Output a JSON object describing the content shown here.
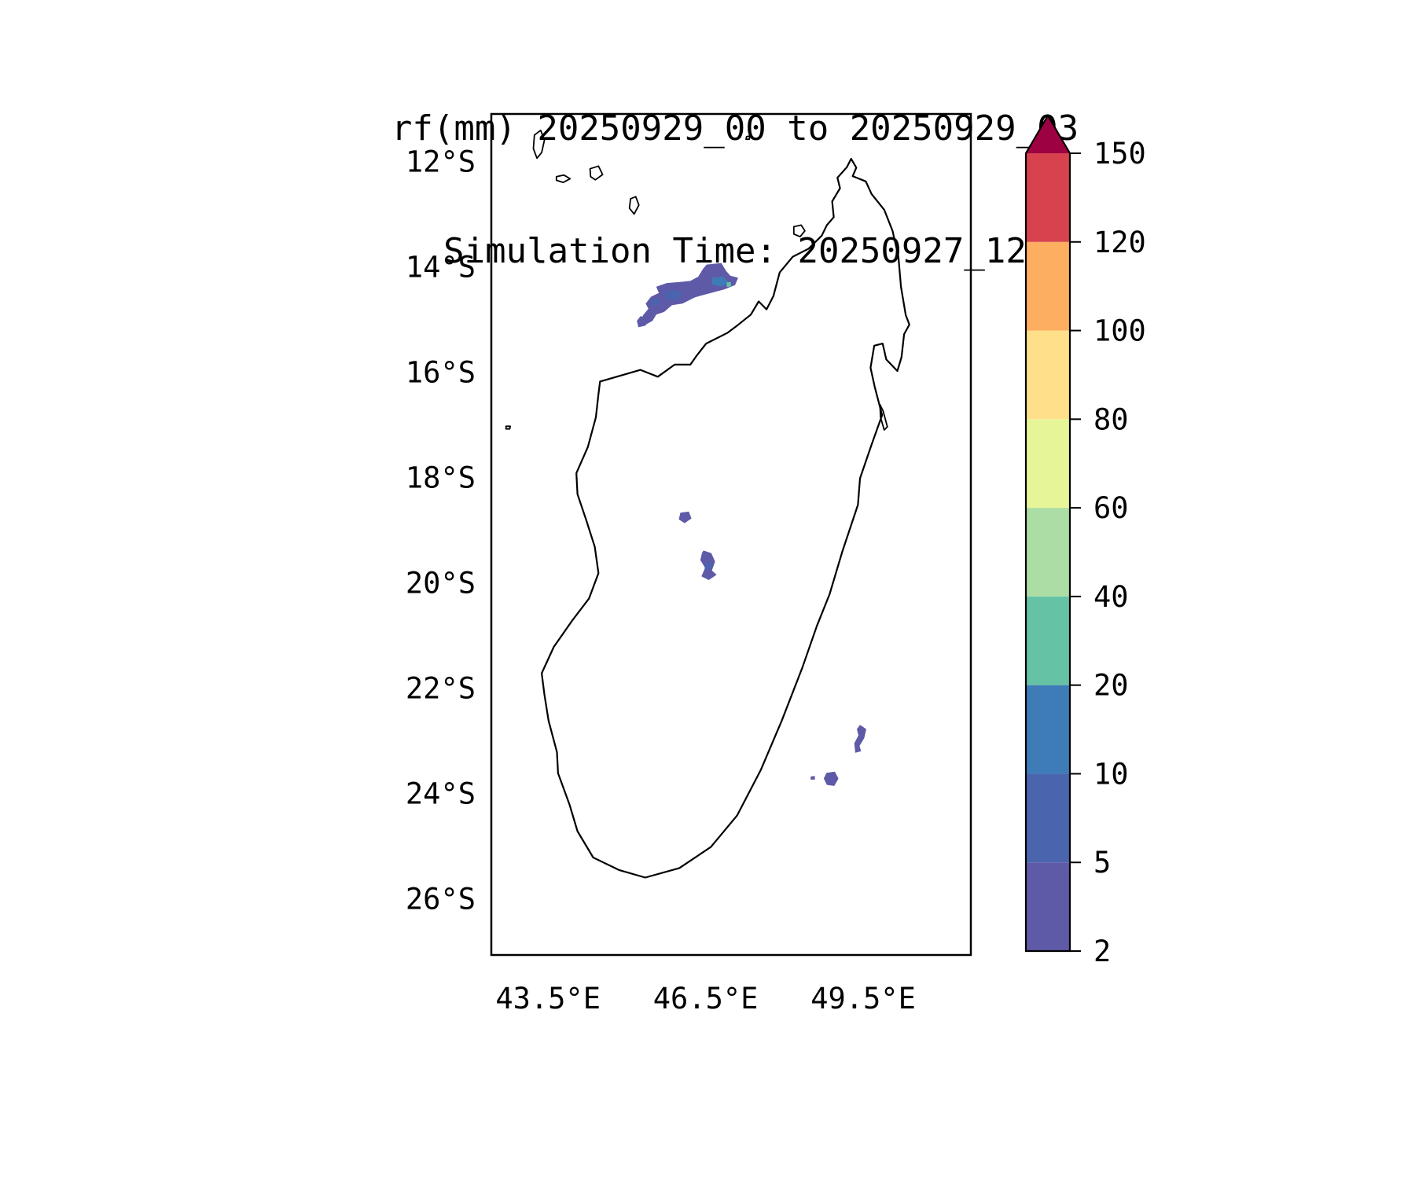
{
  "figure": {
    "title_line1": "rf(mm) 20250929_00 to 20250929_03",
    "title_line2": "Simulation Time: 20250927_12"
  },
  "chart_data": {
    "type": "heatmap",
    "title": "rf(mm) 20250929_00 to 20250929_03",
    "subtitle": "Simulation Time: 20250927_12",
    "variable": "rainfall accumulation",
    "unit": "mm",
    "region": "Madagascar",
    "grid": false,
    "x_axis": {
      "label_suffix": "°E",
      "ticks": [
        43.5,
        46.5,
        49.5
      ],
      "range": [
        42.42,
        51.55
      ]
    },
    "y_axis": {
      "label_suffix": "°S",
      "ticks": [
        12,
        14,
        16,
        18,
        20,
        22,
        24,
        26
      ],
      "range": [
        11.1,
        27.07
      ]
    },
    "colorbar": {
      "boundaries": [
        2,
        5,
        10,
        20,
        40,
        60,
        80,
        100,
        120,
        150
      ],
      "colors": [
        "#5e5aa8",
        "#4b64ae",
        "#3e7cb8",
        "#66c2a5",
        "#abdda4",
        "#e6f598",
        "#fee08b",
        "#fdae61",
        "#d7424e"
      ],
      "over_color": "#9e0142",
      "extend": "max",
      "position": "right"
    },
    "rain_patches": [
      {
        "id": "nw-main",
        "value_mm": "2-5",
        "color_index": 0,
        "polygon": [
          [
            46.52,
            13.96
          ],
          [
            46.8,
            13.93
          ],
          [
            46.89,
            14.08
          ],
          [
            46.97,
            14.17
          ],
          [
            47.12,
            14.21
          ],
          [
            47.06,
            14.35
          ],
          [
            46.86,
            14.43
          ],
          [
            46.6,
            14.5
          ],
          [
            46.3,
            14.58
          ],
          [
            46.06,
            14.7
          ],
          [
            45.86,
            14.73
          ],
          [
            45.71,
            14.86
          ],
          [
            45.56,
            14.91
          ],
          [
            45.49,
            15.03
          ],
          [
            45.36,
            15.1
          ],
          [
            45.26,
            15.05
          ],
          [
            45.31,
            14.92
          ],
          [
            45.41,
            14.8
          ],
          [
            45.36,
            14.7
          ],
          [
            45.46,
            14.57
          ],
          [
            45.61,
            14.5
          ],
          [
            45.56,
            14.38
          ],
          [
            45.76,
            14.31
          ],
          [
            46.01,
            14.29
          ],
          [
            46.21,
            14.27
          ],
          [
            46.36,
            14.19
          ],
          [
            46.45,
            14.04
          ]
        ]
      },
      {
        "id": "nw-sw-blob",
        "value_mm": "2-5",
        "color_index": 0,
        "polygon": [
          [
            45.26,
            14.94
          ],
          [
            45.38,
            14.97
          ],
          [
            45.36,
            15.12
          ],
          [
            45.22,
            15.15
          ],
          [
            45.19,
            15.03
          ]
        ]
      },
      {
        "id": "nw-core-blue",
        "value_mm": "10-20",
        "color_index": 2,
        "polygon": [
          [
            46.62,
            14.21
          ],
          [
            46.83,
            14.19
          ],
          [
            46.93,
            14.29
          ],
          [
            46.81,
            14.38
          ],
          [
            46.63,
            14.34
          ]
        ]
      },
      {
        "id": "nw-core-teal",
        "value_mm": "20-40",
        "color_index": 3,
        "polygon": [
          [
            46.9,
            14.3
          ],
          [
            46.98,
            14.29
          ],
          [
            46.98,
            14.38
          ],
          [
            46.9,
            14.38
          ]
        ]
      },
      {
        "id": "nw-inner-1",
        "value_mm": "5-10",
        "color_index": 1,
        "polygon": [
          [
            45.73,
            14.47
          ],
          [
            45.96,
            14.44
          ],
          [
            46.06,
            14.54
          ],
          [
            45.91,
            14.65
          ],
          [
            45.73,
            14.61
          ]
        ]
      },
      {
        "id": "nw-inner-2",
        "value_mm": "5-10",
        "color_index": 1,
        "polygon": [
          [
            45.46,
            14.62
          ],
          [
            45.61,
            14.6
          ],
          [
            45.64,
            14.72
          ],
          [
            45.48,
            14.74
          ]
        ]
      },
      {
        "id": "central-small",
        "value_mm": "2-5",
        "color_index": 0,
        "polygon": [
          [
            46.02,
            18.67
          ],
          [
            46.18,
            18.65
          ],
          [
            46.23,
            18.78
          ],
          [
            46.1,
            18.87
          ],
          [
            45.99,
            18.8
          ]
        ]
      },
      {
        "id": "central-blob",
        "value_mm": "2-5",
        "color_index": 0,
        "polygon": [
          [
            46.46,
            19.39
          ],
          [
            46.61,
            19.44
          ],
          [
            46.68,
            19.6
          ],
          [
            46.62,
            19.77
          ],
          [
            46.71,
            19.85
          ],
          [
            46.56,
            19.95
          ],
          [
            46.42,
            19.88
          ],
          [
            46.49,
            19.72
          ],
          [
            46.4,
            19.57
          ],
          [
            46.43,
            19.44
          ]
        ]
      },
      {
        "id": "central-blob-core",
        "value_mm": "5-10",
        "color_index": 1,
        "polygon": [
          [
            46.52,
            19.6
          ],
          [
            46.63,
            19.63
          ],
          [
            46.58,
            19.77
          ],
          [
            46.48,
            19.73
          ]
        ]
      },
      {
        "id": "se-coast",
        "value_mm": "2-5",
        "color_index": 0,
        "polygon": [
          [
            49.44,
            22.7
          ],
          [
            49.56,
            22.78
          ],
          [
            49.52,
            22.95
          ],
          [
            49.43,
            23.1
          ],
          [
            49.46,
            23.2
          ],
          [
            49.35,
            23.23
          ],
          [
            49.33,
            23.05
          ],
          [
            49.41,
            22.9
          ],
          [
            49.38,
            22.78
          ]
        ]
      },
      {
        "id": "se-inland",
        "value_mm": "2-5",
        "color_index": 0,
        "polygon": [
          [
            48.8,
            23.61
          ],
          [
            48.96,
            23.59
          ],
          [
            49.03,
            23.72
          ],
          [
            48.95,
            23.86
          ],
          [
            48.81,
            23.84
          ],
          [
            48.75,
            23.72
          ]
        ]
      },
      {
        "id": "se-speck",
        "value_mm": "2-5",
        "color_index": 0,
        "polygon": [
          [
            48.5,
            23.68
          ],
          [
            48.58,
            23.67
          ],
          [
            48.58,
            23.74
          ],
          [
            48.5,
            23.74
          ]
        ]
      }
    ],
    "geography": {
      "madagascar": [
        [
          49.27,
          11.95
        ],
        [
          49.37,
          12.12
        ],
        [
          49.3,
          12.28
        ],
        [
          49.55,
          12.38
        ],
        [
          49.66,
          12.62
        ],
        [
          49.9,
          12.92
        ],
        [
          50.06,
          13.32
        ],
        [
          50.17,
          13.8
        ],
        [
          50.22,
          14.38
        ],
        [
          50.31,
          14.92
        ],
        [
          50.38,
          15.1
        ],
        [
          50.28,
          15.28
        ],
        [
          50.23,
          15.72
        ],
        [
          50.15,
          15.98
        ],
        [
          49.94,
          15.76
        ],
        [
          49.87,
          15.46
        ],
        [
          49.71,
          15.5
        ],
        [
          49.64,
          15.92
        ],
        [
          49.72,
          16.28
        ],
        [
          49.86,
          16.82
        ],
        [
          49.66,
          17.38
        ],
        [
          49.44,
          18.02
        ],
        [
          49.4,
          18.52
        ],
        [
          49.1,
          19.42
        ],
        [
          48.86,
          20.22
        ],
        [
          48.62,
          20.82
        ],
        [
          48.34,
          21.62
        ],
        [
          47.95,
          22.62
        ],
        [
          47.55,
          23.56
        ],
        [
          47.1,
          24.42
        ],
        [
          46.6,
          25.02
        ],
        [
          46.0,
          25.42
        ],
        [
          45.35,
          25.6
        ],
        [
          44.86,
          25.46
        ],
        [
          44.36,
          25.22
        ],
        [
          44.06,
          24.72
        ],
        [
          43.91,
          24.22
        ],
        [
          43.69,
          23.62
        ],
        [
          43.67,
          23.22
        ],
        [
          43.51,
          22.62
        ],
        [
          43.43,
          22.12
        ],
        [
          43.38,
          21.72
        ],
        [
          43.61,
          21.22
        ],
        [
          43.96,
          20.72
        ],
        [
          44.28,
          20.3
        ],
        [
          44.46,
          19.82
        ],
        [
          44.39,
          19.32
        ],
        [
          44.23,
          18.82
        ],
        [
          44.06,
          18.32
        ],
        [
          44.04,
          17.92
        ],
        [
          44.26,
          17.42
        ],
        [
          44.41,
          16.86
        ],
        [
          44.46,
          16.42
        ],
        [
          44.49,
          16.18
        ],
        [
          44.91,
          16.06
        ],
        [
          45.26,
          15.96
        ],
        [
          45.59,
          16.09
        ],
        [
          45.91,
          15.86
        ],
        [
          46.21,
          15.86
        ],
        [
          46.33,
          15.69
        ],
        [
          46.51,
          15.46
        ],
        [
          46.91,
          15.26
        ],
        [
          47.11,
          15.11
        ],
        [
          47.36,
          14.91
        ],
        [
          47.51,
          14.66
        ],
        [
          47.66,
          14.81
        ],
        [
          47.79,
          14.56
        ],
        [
          47.91,
          14.11
        ],
        [
          48.16,
          13.81
        ],
        [
          48.46,
          13.66
        ],
        [
          48.71,
          13.41
        ],
        [
          48.81,
          13.21
        ],
        [
          48.94,
          13.06
        ],
        [
          48.91,
          12.76
        ],
        [
          49.06,
          12.51
        ],
        [
          49.01,
          12.31
        ],
        [
          49.19,
          12.11
        ]
      ],
      "islands": {
        "grande-comore": [
          [
            43.24,
            11.5
          ],
          [
            43.36,
            11.41
          ],
          [
            43.43,
            11.6
          ],
          [
            43.38,
            11.83
          ],
          [
            43.29,
            11.94
          ],
          [
            43.22,
            11.76
          ]
        ],
        "moheli": [
          [
            43.66,
            12.29
          ],
          [
            43.8,
            12.26
          ],
          [
            43.92,
            12.33
          ],
          [
            43.79,
            12.4
          ],
          [
            43.66,
            12.36
          ]
        ],
        "anjouan": [
          [
            44.3,
            12.14
          ],
          [
            44.46,
            12.09
          ],
          [
            44.54,
            12.25
          ],
          [
            44.4,
            12.35
          ],
          [
            44.31,
            12.29
          ]
        ],
        "mayotte": [
          [
            45.07,
            12.71
          ],
          [
            45.17,
            12.67
          ],
          [
            45.23,
            12.83
          ],
          [
            45.14,
            13.0
          ],
          [
            45.05,
            12.89
          ]
        ],
        "glorioso": [
          [
            47.28,
            11.53
          ],
          [
            47.34,
            11.52
          ],
          [
            47.33,
            11.58
          ],
          [
            47.27,
            11.58
          ]
        ],
        "juan-de-nova": [
          [
            42.7,
            17.03
          ],
          [
            42.78,
            17.03
          ],
          [
            42.77,
            17.08
          ],
          [
            42.7,
            17.08
          ]
        ],
        "nosy-be": [
          [
            48.18,
            13.24
          ],
          [
            48.32,
            13.21
          ],
          [
            48.39,
            13.32
          ],
          [
            48.3,
            13.43
          ],
          [
            48.18,
            13.38
          ]
        ],
        "sainte-marie": [
          [
            49.82,
            16.62
          ],
          [
            49.88,
            16.74
          ],
          [
            49.96,
            17.04
          ],
          [
            49.9,
            17.1
          ],
          [
            49.83,
            16.86
          ]
        ]
      }
    }
  }
}
